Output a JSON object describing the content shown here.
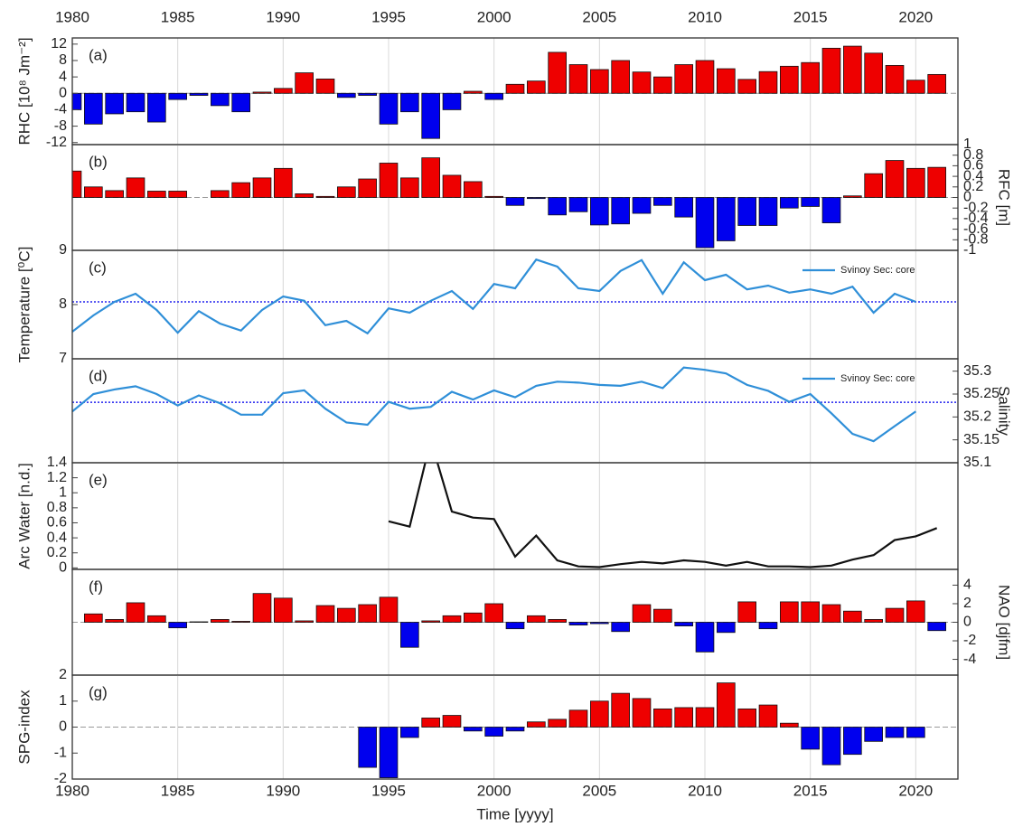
{
  "chart_data": [
    {
      "type": "bar",
      "panel_label": "(a)",
      "ylabel": "RHC [10⁸ Jm⁻²]",
      "yaxis_side": "left",
      "xaxis_side": "top",
      "xlim": [
        1980,
        2022
      ],
      "xticks": [
        1980,
        1985,
        1990,
        1995,
        2000,
        2005,
        2010,
        2015,
        2020
      ],
      "ylim": [
        -12.5,
        13.5
      ],
      "yticks": [
        12,
        8,
        4,
        0,
        -4,
        -8,
        -12
      ],
      "positive_color": "#ee0000",
      "negative_color": "#0000ee",
      "x": [
        1980,
        1981,
        1982,
        1983,
        1984,
        1985,
        1986,
        1987,
        1988,
        1989,
        1990,
        1991,
        1992,
        1993,
        1994,
        1995,
        1996,
        1997,
        1998,
        1999,
        2000,
        2001,
        2002,
        2003,
        2004,
        2005,
        2006,
        2007,
        2008,
        2009,
        2010,
        2011,
        2012,
        2013,
        2014,
        2015,
        2016,
        2017,
        2018,
        2019,
        2020,
        2021
      ],
      "values": [
        -4,
        -7.5,
        -5,
        -4.5,
        -7,
        -1.5,
        -0.5,
        -3,
        -4.5,
        0.3,
        1.2,
        5,
        3.5,
        -1,
        -0.5,
        -7.5,
        -4.5,
        -11,
        -4,
        0.5,
        -1.5,
        2.2,
        3,
        10,
        7,
        5.8,
        8,
        5.2,
        4,
        7,
        8,
        6,
        3.4,
        5.3,
        6.6,
        7.5,
        11,
        11.5,
        9.8,
        6.8,
        3.2,
        4.6
      ]
    },
    {
      "type": "bar",
      "panel_label": "(b)",
      "ylabel": "RFC [m]",
      "yaxis_side": "right",
      "xlim": [
        1980,
        2022
      ],
      "xticks": [
        1980,
        1985,
        1990,
        1995,
        2000,
        2005,
        2010,
        2015,
        2020
      ],
      "ylim": [
        -1,
        1
      ],
      "yticks": [
        1,
        0.8,
        0.6,
        0.4,
        0.2,
        0,
        -0.2,
        -0.4,
        -0.6,
        -0.8,
        -1
      ],
      "positive_color": "#ee0000",
      "negative_color": "#0000ee",
      "x": [
        1980,
        1981,
        1982,
        1983,
        1984,
        1985,
        1986,
        1987,
        1988,
        1989,
        1990,
        1991,
        1992,
        1993,
        1994,
        1995,
        1996,
        1997,
        1998,
        1999,
        2000,
        2001,
        2002,
        2003,
        2004,
        2005,
        2006,
        2007,
        2008,
        2009,
        2010,
        2011,
        2012,
        2013,
        2014,
        2015,
        2016,
        2017,
        2018,
        2019,
        2020,
        2021
      ],
      "values": [
        0.5,
        0.2,
        0.13,
        0.37,
        0.12,
        0.12,
        0,
        0.13,
        0.28,
        0.37,
        0.55,
        0.07,
        0.02,
        0.2,
        0.35,
        0.65,
        0.37,
        0.75,
        0.42,
        0.3,
        0.02,
        -0.15,
        -0.02,
        -0.33,
        -0.27,
        -0.52,
        -0.5,
        -0.3,
        -0.15,
        -0.37,
        -0.95,
        -0.82,
        -0.53,
        -0.53,
        -0.2,
        -0.17,
        -0.48,
        0.03,
        0.45,
        0.7,
        0.55,
        0.57
      ]
    },
    {
      "type": "line",
      "panel_label": "(c)",
      "ylabel": "Temperature [⁰C]",
      "yaxis_side": "left",
      "xlim": [
        1980,
        2022
      ],
      "xticks": [
        1980,
        1985,
        1990,
        1995,
        2000,
        2005,
        2010,
        2015,
        2020
      ],
      "ylim": [
        7,
        9
      ],
      "yticks": [
        7,
        8,
        9
      ],
      "reference_line": 8.05,
      "reference_color": "#2222ee",
      "legend": "upper right",
      "x": [
        1980,
        1981,
        1982,
        1983,
        1984,
        1985,
        1986,
        1987,
        1988,
        1989,
        1990,
        1991,
        1992,
        1993,
        1994,
        1995,
        1996,
        1997,
        1998,
        1999,
        2000,
        2001,
        2002,
        2003,
        2004,
        2005,
        2006,
        2007,
        2008,
        2009,
        2010,
        2011,
        2012,
        2013,
        2014,
        2015,
        2016,
        2017,
        2018,
        2019,
        2020
      ],
      "series": [
        {
          "name": "Svinoy Sec: core",
          "color": "#2f8fd8",
          "values": [
            7.5,
            7.8,
            8.05,
            8.2,
            7.9,
            7.48,
            7.88,
            7.65,
            7.52,
            7.9,
            8.15,
            8.07,
            7.62,
            7.7,
            7.47,
            7.93,
            7.85,
            8.07,
            8.25,
            7.92,
            8.38,
            8.3,
            8.83,
            8.7,
            8.3,
            8.25,
            8.62,
            8.82,
            8.2,
            8.78,
            8.45,
            8.55,
            8.28,
            8.35,
            8.22,
            8.28,
            8.2,
            8.33,
            7.85,
            8.2,
            8.05
          ]
        }
      ]
    },
    {
      "type": "line",
      "panel_label": "(d)",
      "ylabel": "Salinity",
      "yaxis_side": "right",
      "xlim": [
        1980,
        2022
      ],
      "xticks": [
        1980,
        1985,
        1990,
        1995,
        2000,
        2005,
        2010,
        2015,
        2020
      ],
      "ylim": [
        35.1,
        35.327
      ],
      "yticks": [
        35.1,
        35.15,
        35.2,
        35.25,
        35.3
      ],
      "reference_line": 35.232,
      "reference_color": "#2222ee",
      "legend": "upper right",
      "x": [
        1980,
        1981,
        1982,
        1983,
        1984,
        1985,
        1986,
        1987,
        1988,
        1989,
        1990,
        1991,
        1992,
        1993,
        1994,
        1995,
        1996,
        1997,
        1998,
        1999,
        2000,
        2001,
        2002,
        2003,
        2004,
        2005,
        2006,
        2007,
        2008,
        2009,
        2010,
        2011,
        2012,
        2013,
        2014,
        2015,
        2016,
        2017,
        2018,
        2019,
        2020
      ],
      "series": [
        {
          "name": "Svinoy Sec: core",
          "color": "#2f8fd8",
          "values": [
            35.212,
            35.25,
            35.26,
            35.267,
            35.25,
            35.225,
            35.247,
            35.23,
            35.205,
            35.205,
            35.252,
            35.258,
            35.218,
            35.188,
            35.183,
            35.233,
            35.218,
            35.222,
            35.255,
            35.238,
            35.258,
            35.243,
            35.268,
            35.277,
            35.275,
            35.27,
            35.268,
            35.277,
            35.263,
            35.308,
            35.303,
            35.295,
            35.27,
            35.257,
            35.233,
            35.25,
            35.208,
            35.163,
            35.147,
            35.18,
            35.212
          ]
        }
      ]
    },
    {
      "type": "line",
      "panel_label": "(e)",
      "ylabel": "Arc Water [n.d.]",
      "yaxis_side": "left",
      "xlim": [
        1980,
        2022
      ],
      "xticks": [
        1980,
        1985,
        1990,
        1995,
        2000,
        2005,
        2010,
        2015,
        2020
      ],
      "ylim": [
        -0.02,
        1.4
      ],
      "yticks": [
        0,
        0.2,
        0.4,
        0.6,
        0.8,
        1,
        1.2,
        1.4
      ],
      "x": [
        1995,
        1996,
        1997,
        1998,
        1999,
        2000,
        2001,
        2002,
        2003,
        2004,
        2005,
        2006,
        2007,
        2008,
        2009,
        2010,
        2011,
        2012,
        2013,
        2014,
        2015,
        2016,
        2017,
        2018,
        2019,
        2020,
        2021
      ],
      "series": [
        {
          "color": "#111111",
          "values": [
            0.62,
            0.55,
            1.7,
            0.75,
            0.67,
            0.65,
            0.15,
            0.43,
            0.1,
            0.02,
            0.01,
            0.05,
            0.08,
            0.06,
            0.1,
            0.08,
            0.03,
            0.08,
            0.02,
            0.02,
            0.01,
            0.03,
            0.11,
            0.17,
            0.37,
            0.42,
            0.53
          ]
        }
      ]
    },
    {
      "type": "bar",
      "panel_label": "(f)",
      "ylabel": "NAO [djfm]",
      "yaxis_side": "right",
      "xlim": [
        1980,
        2022
      ],
      "xticks": [
        1980,
        1985,
        1990,
        1995,
        2000,
        2005,
        2010,
        2015,
        2020
      ],
      "ylim": [
        -5.7,
        5.7
      ],
      "yticks": [
        4,
        2,
        0,
        -2,
        -4
      ],
      "positive_color": "#ee0000",
      "negative_color": "#0000ee",
      "x": [
        1981,
        1982,
        1983,
        1984,
        1985,
        1986,
        1987,
        1988,
        1989,
        1990,
        1991,
        1992,
        1993,
        1994,
        1995,
        1996,
        1997,
        1998,
        1999,
        2000,
        2001,
        2002,
        2003,
        2004,
        2005,
        2006,
        2007,
        2008,
        2009,
        2010,
        2011,
        2012,
        2013,
        2014,
        2015,
        2016,
        2017,
        2018,
        2019,
        2020,
        2021
      ],
      "values": [
        0.9,
        0.3,
        2.1,
        0.7,
        -0.6,
        0.05,
        0.3,
        0.1,
        3.1,
        2.6,
        0.15,
        1.8,
        1.5,
        1.9,
        2.7,
        -2.7,
        0.15,
        0.7,
        1,
        2,
        -0.7,
        0.7,
        0.3,
        -0.3,
        -0.15,
        -1,
        1.9,
        1.4,
        -0.4,
        -3.2,
        -1.1,
        2.2,
        -0.7,
        2.2,
        2.2,
        1.9,
        1.2,
        0.3,
        1.5,
        2.3,
        -0.9
      ]
    },
    {
      "type": "bar",
      "panel_label": "(g)",
      "ylabel": "SPG-index",
      "yaxis_side": "left",
      "xaxis_side": "bottom",
      "xlabel": "Time [yyyy]",
      "xlim": [
        1980,
        2022
      ],
      "xticks": [
        1980,
        1985,
        1990,
        1995,
        2000,
        2005,
        2010,
        2015,
        2020
      ],
      "ylim": [
        -2,
        2
      ],
      "yticks": [
        2,
        1,
        0,
        -1,
        -2
      ],
      "positive_color": "#ee0000",
      "negative_color": "#0000ee",
      "x": [
        1994,
        1995,
        1996,
        1997,
        1998,
        1999,
        2000,
        2001,
        2002,
        2003,
        2004,
        2005,
        2006,
        2007,
        2008,
        2009,
        2010,
        2011,
        2012,
        2013,
        2014,
        2015,
        2016,
        2017,
        2018,
        2019,
        2020
      ],
      "values": [
        -1.55,
        -1.95,
        -0.4,
        0.35,
        0.45,
        -0.15,
        -0.35,
        -0.15,
        0.2,
        0.3,
        0.65,
        1,
        1.3,
        1.1,
        0.7,
        0.75,
        0.75,
        1.7,
        0.7,
        0.85,
        0.15,
        -0.85,
        -1.45,
        -1.05,
        -0.55,
        -0.4,
        -0.4
      ]
    }
  ]
}
